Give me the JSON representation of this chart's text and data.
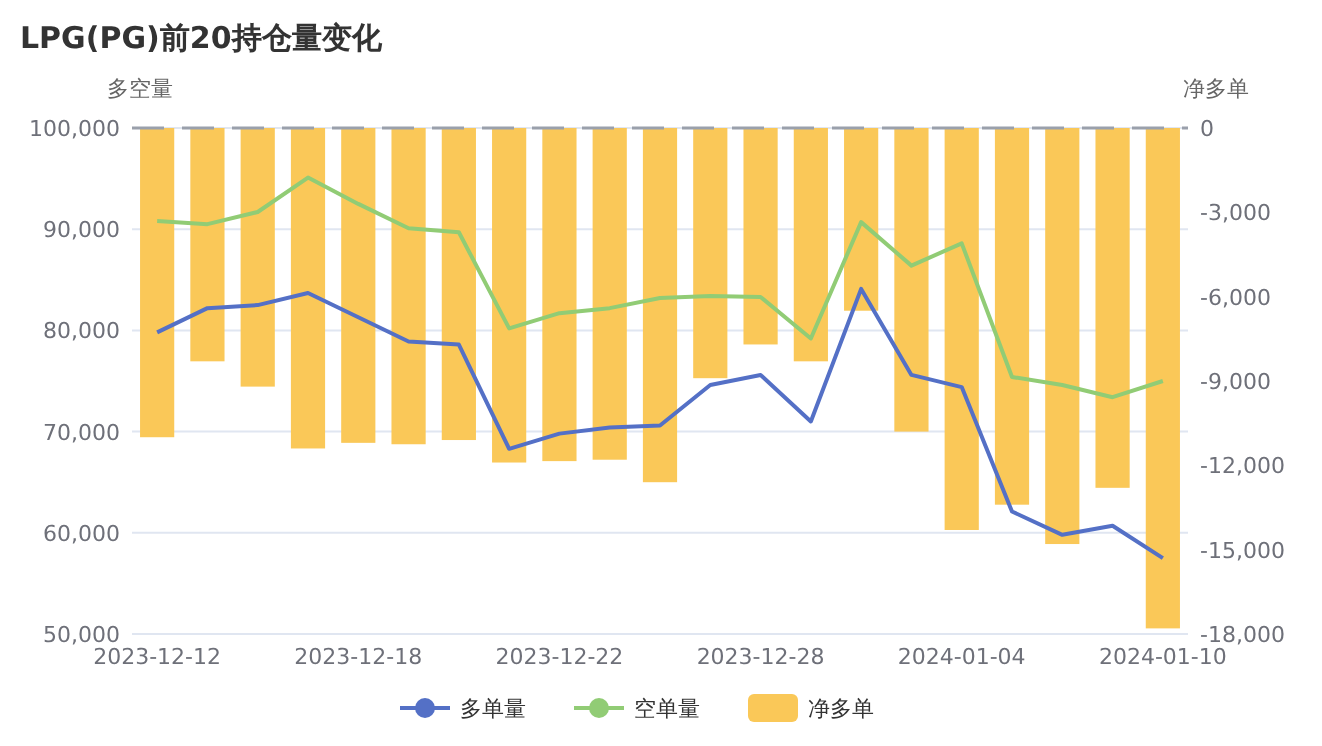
{
  "chart_data": {
    "type": "line",
    "title": "LPG(PG)前20持仓量变化",
    "ylabel": "多空量",
    "y2label": "净多单",
    "categories": [
      "2023-12-12",
      null,
      null,
      null,
      "2023-12-18",
      null,
      null,
      null,
      "2023-12-22",
      null,
      null,
      null,
      "2023-12-28",
      null,
      null,
      null,
      "2024-01-04",
      null,
      null,
      null,
      "2024-01-10"
    ],
    "series": [
      {
        "name": "多单量",
        "color": "#5470c6",
        "values": [
          79800,
          82200,
          82500,
          83700,
          81300,
          78900,
          78600,
          68300,
          69800,
          70400,
          70600,
          74600,
          75600,
          71000,
          84100,
          75600,
          74400,
          62100,
          59800,
          60700,
          57500
        ]
      },
      {
        "name": "空单量",
        "color": "#91cc75",
        "values": [
          90800,
          90500,
          91700,
          95100,
          92500,
          90100,
          89700,
          80200,
          81700,
          82200,
          83200,
          83400,
          83300,
          79200,
          90700,
          86400,
          88600,
          75400,
          74600,
          73400,
          75000
        ]
      },
      {
        "name": "净多单",
        "type": "bar",
        "axis": "y2",
        "color": "#fac858",
        "values": [
          -11000,
          -8300,
          -9200,
          -11400,
          -11200,
          -11250,
          -11100,
          -11900,
          -11850,
          -11800,
          -12600,
          -8900,
          -7700,
          -8300,
          -6500,
          -10800,
          -14300,
          -13400,
          -14800,
          -12800,
          -17800
        ]
      }
    ],
    "ylim": [
      50000,
      100000
    ],
    "yticks": [
      {
        "value": 50000,
        "label": "50,000"
      },
      {
        "value": 60000,
        "label": "60,000"
      },
      {
        "value": 70000,
        "label": "70,000"
      },
      {
        "value": 80000,
        "label": "80,000"
      },
      {
        "value": 90000,
        "label": "90,000"
      },
      {
        "value": 100000,
        "label": "100,000"
      }
    ],
    "y2lim": [
      -18000,
      0
    ],
    "y2ticks": [
      {
        "value": -18000,
        "label": "-18,000"
      },
      {
        "value": -15000,
        "label": "-15,000"
      },
      {
        "value": -12000,
        "label": "-12,000"
      },
      {
        "value": -9000,
        "label": "-9,000"
      },
      {
        "value": -6000,
        "label": "-6,000"
      },
      {
        "value": -3000,
        "label": "-3,000"
      },
      0
    ],
    "grid": "y",
    "legend": "bottom",
    "marker": "none",
    "line_style": "solid"
  }
}
